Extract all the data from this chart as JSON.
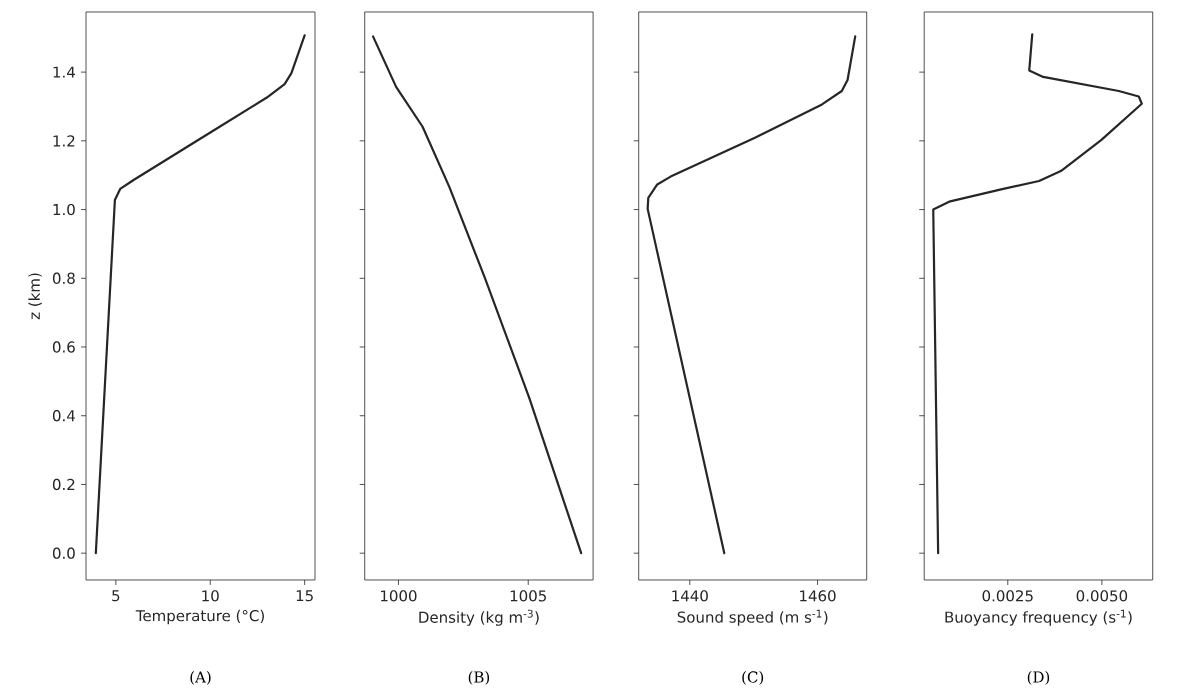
{
  "chart_data": [
    {
      "type": "line",
      "xlabel": "Temperature (°C)",
      "ylabel": "z (km)",
      "color": "#262626",
      "x": [
        3.94,
        4.95,
        5.23,
        5.94,
        9.94,
        13.0,
        13.94,
        14.3,
        15.0
      ],
      "values": [
        0,
        1.028,
        1.06,
        1.086,
        1.222,
        1.326,
        1.365,
        1.397,
        1.507
      ],
      "xlim": [
        3.42,
        15.55
      ],
      "ylim": [
        -0.078,
        1.575
      ],
      "xticks": [
        5,
        10,
        15
      ],
      "yticks": [
        {
          "value": 0,
          "label": "0.0"
        },
        0.2,
        0.4,
        0.6,
        0.8,
        {
          "value": 1,
          "label": "1.0"
        },
        1.2,
        1.4
      ],
      "annotations": [
        "(A)"
      ]
    },
    {
      "type": "line",
      "xlabel": "Density (kg m$^{-3}$)",
      "color": "#262626",
      "x": [
        999.02,
        999.91,
        1000.93,
        1001.96,
        1003.33,
        1005.04,
        1007.04
      ],
      "values": [
        1.504,
        1.357,
        1.241,
        1.066,
        0.801,
        0.452,
        0
      ],
      "xlim": [
        998.7,
        1007.5
      ],
      "ylim": [
        -0.078,
        1.575
      ],
      "xticks": [
        1000,
        1005
      ],
      "yticks": [
        0,
        0.2,
        0.4,
        0.6,
        0.8,
        1,
        1.2,
        1.4
      ],
      "tick_labels": "x",
      "annotations": [
        "(B)"
      ]
    },
    {
      "type": "line",
      "xlabel": "Sound speed (m s$^{-1}$)",
      "color": "#262626",
      "x": [
        1445.4,
        1433.4,
        1433.5,
        1434.9,
        1437.0,
        1450.2,
        1460.7,
        1463.8,
        1464.7,
        1465.9
      ],
      "values": [
        0,
        1.002,
        1.034,
        1.073,
        1.096,
        1.209,
        1.306,
        1.345,
        1.377,
        1.504
      ],
      "xlim": [
        1432.0,
        1467.7
      ],
      "ylim": [
        -0.078,
        1.575
      ],
      "xticks": [
        1440,
        1460
      ],
      "yticks": [
        0,
        0.2,
        0.4,
        0.6,
        0.8,
        1,
        1.2,
        1.4
      ],
      "tick_labels": "x",
      "annotations": [
        "(C)"
      ]
    },
    {
      "type": "line",
      "xlabel": "Buoyancy frequency (s$^{-1}$)",
      "color": "#262626",
      "x": [
        0.00065,
        0.00052,
        0.00097,
        0.00238,
        0.00333,
        0.00391,
        0.00498,
        0.00606,
        0.00598,
        0.00545,
        0.00344,
        0.00307,
        0.00315
      ],
      "values": [
        0,
        1.0,
        1.024,
        1.06,
        1.083,
        1.112,
        1.202,
        1.308,
        1.329,
        1.345,
        1.386,
        1.405,
        1.51
      ],
      "xlim": [
        0.00028,
        0.00635
      ],
      "ylim": [
        -0.078,
        1.575
      ],
      "xticks": [
        0.0025,
        {
          "value": 0.005,
          "label": "0.0050"
        }
      ],
      "yticks": [
        0,
        0.2,
        0.4,
        0.6,
        0.8,
        1,
        1.2,
        1.4
      ],
      "tick_labels": "x",
      "annotations": [
        "(D)"
      ]
    }
  ]
}
